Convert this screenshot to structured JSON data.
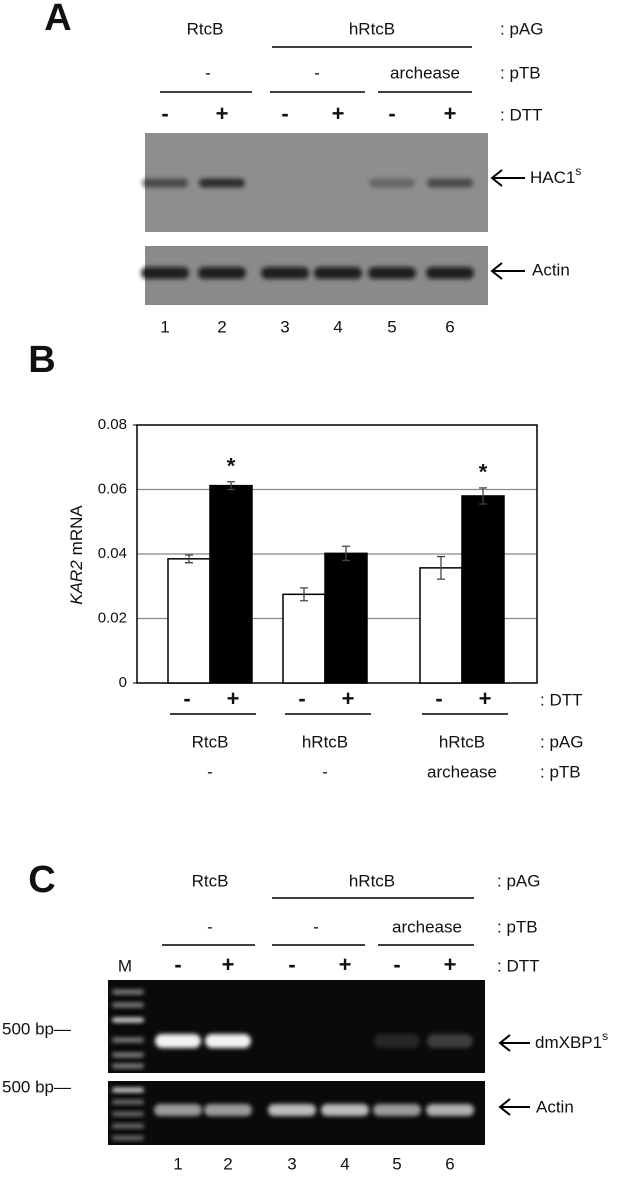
{
  "panel_a": {
    "label": "A",
    "pag": [
      "RtcB",
      "hRtcB"
    ],
    "pag_label": ": pAG",
    "ptb": [
      "-",
      "-",
      "archease"
    ],
    "ptb_label": ": pTB",
    "dtt": [
      "-",
      "+",
      "-",
      "+",
      "-",
      "+"
    ],
    "dtt_label": ": DTT",
    "band_1": {
      "text": "HAC1",
      "sup": "s"
    },
    "band_2": "Actin",
    "lanes": [
      "1",
      "2",
      "3",
      "4",
      "5",
      "6"
    ]
  },
  "chart_data": {
    "type": "bar",
    "panel_label": "B",
    "y_label_gene": "KAR2",
    "y_label_unit": "mRNA",
    "categories": [
      "RtcB",
      "hRtcB",
      "hRtcB"
    ],
    "categories_ptb": [
      "-",
      "-",
      "archease"
    ],
    "row_labels": [
      ": DTT",
      ": pAG",
      ": pTB"
    ],
    "series": [
      {
        "name": "-",
        "color": "#ffffff",
        "values": [
          0.0385,
          0.0275,
          0.0357
        ],
        "errors": [
          0.0012,
          0.002,
          0.0035
        ]
      },
      {
        "name": "+",
        "color": "#000000",
        "values": [
          0.0612,
          0.0402,
          0.058
        ],
        "errors": [
          0.0012,
          0.0022,
          0.0025
        ],
        "annotations": [
          "*",
          null,
          "*"
        ]
      }
    ],
    "ylim": [
      0,
      0.08
    ],
    "yticks": [
      0,
      0.02,
      0.04,
      0.06,
      0.08
    ],
    "grid": true
  },
  "panel_c": {
    "label": "C",
    "pag": [
      "RtcB",
      "hRtcB"
    ],
    "pag_label": ": pAG",
    "ptb": [
      "-",
      "-",
      "archease"
    ],
    "ptb_label": ": pTB",
    "marker": "M",
    "dtt": [
      "-",
      "+",
      "-",
      "+",
      "-",
      "+"
    ],
    "dtt_label": ": DTT",
    "size_labels": [
      "500 bp—",
      "500 bp—"
    ],
    "band_1": {
      "text": "dmXBP1",
      "sup": "s"
    },
    "band_2": "Actin",
    "lanes": [
      "1",
      "2",
      "3",
      "4",
      "5",
      "6"
    ]
  }
}
